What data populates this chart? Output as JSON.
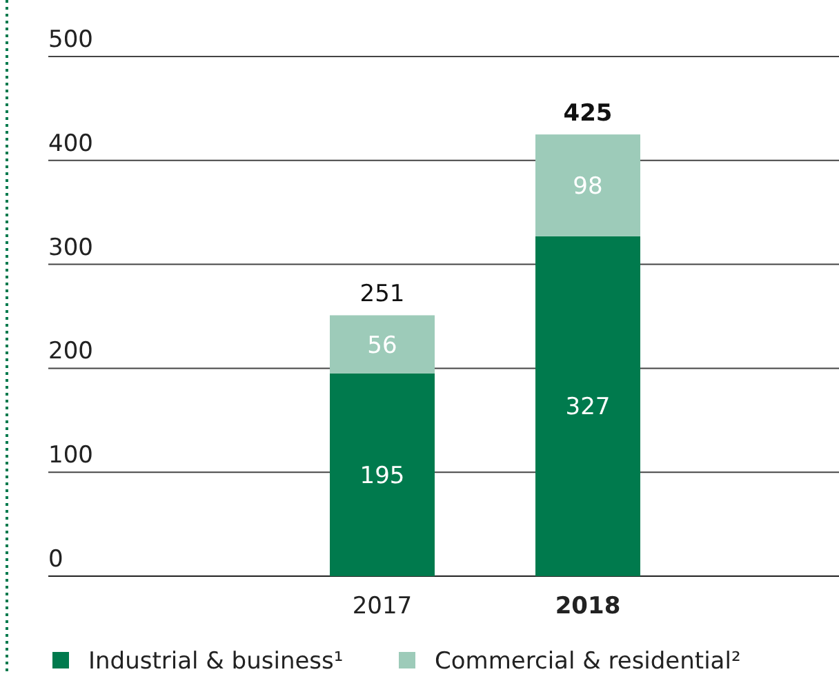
{
  "chart_data": {
    "type": "bar",
    "stacked": true,
    "categories": [
      "2017",
      "2018"
    ],
    "series": [
      {
        "name": "Industrial & business¹",
        "color": "#007a4d",
        "values": [
          195,
          327
        ]
      },
      {
        "name": "Commercial & residential²",
        "color": "#9dcbb9",
        "values": [
          56,
          98
        ]
      }
    ],
    "ylim": [
      0,
      500
    ],
    "yticks": [
      0,
      100,
      200,
      300,
      400,
      500
    ],
    "grid": "y",
    "data_labels": true,
    "totals": [
      "251",
      "425"
    ],
    "legend": "bottom"
  }
}
